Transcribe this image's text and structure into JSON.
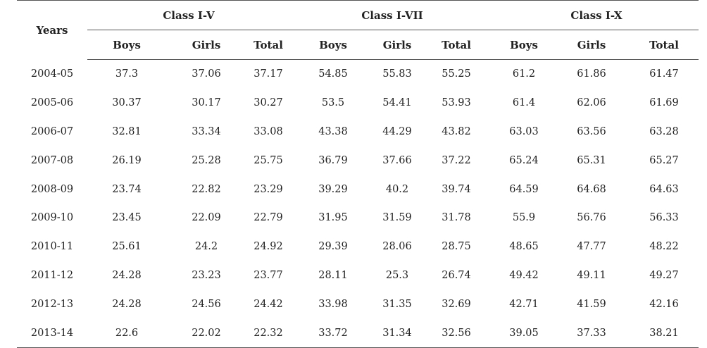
{
  "header": {
    "years_label": "Years",
    "groups": [
      "Class I-V",
      "Class I-VII",
      "Class I-X"
    ],
    "subcolumns": [
      "Boys",
      "Girls",
      "Total",
      "Boys",
      "Girls",
      "Total",
      "Boys",
      "Girls",
      "Total"
    ]
  },
  "rows": [
    {
      "year": "2004-05",
      "values": [
        "37.3",
        "37.06",
        "37.17",
        "54.85",
        "55.83",
        "55.25",
        "61.2",
        "61.86",
        "61.47"
      ]
    },
    {
      "year": "2005-06",
      "values": [
        "30.37",
        "30.17",
        "30.27",
        "53.5",
        "54.41",
        "53.93",
        "61.4",
        "62.06",
        "61.69"
      ]
    },
    {
      "year": "2006-07",
      "values": [
        "32.81",
        "33.34",
        "33.08",
        "43.38",
        "44.29",
        "43.82",
        "63.03",
        "63.56",
        "63.28"
      ]
    },
    {
      "year": "2007-08",
      "values": [
        "26.19",
        "25.28",
        "25.75",
        "36.79",
        "37.66",
        "37.22",
        "65.24",
        "65.31",
        "65.27"
      ]
    },
    {
      "year": "2008-09",
      "values": [
        "23.74",
        "22.82",
        "23.29",
        "39.29",
        "40.2",
        "39.74",
        "64.59",
        "64.68",
        "64.63"
      ]
    },
    {
      "year": "2009-10",
      "values": [
        "23.45",
        "22.09",
        "22.79",
        "31.95",
        "31.59",
        "31.78",
        "55.9",
        "56.76",
        "56.33"
      ]
    },
    {
      "year": "2010-11",
      "values": [
        "25.61",
        "24.2",
        "24.92",
        "29.39",
        "28.06",
        "28.75",
        "48.65",
        "47.77",
        "48.22"
      ]
    },
    {
      "year": "2011-12",
      "values": [
        "24.28",
        "23.23",
        "23.77",
        "28.11",
        "25.3",
        "26.74",
        "49.42",
        "49.11",
        "49.27"
      ]
    },
    {
      "year": "2012-13",
      "values": [
        "24.28",
        "24.56",
        "24.42",
        "33.98",
        "31.35",
        "32.69",
        "42.71",
        "41.59",
        "42.16"
      ]
    },
    {
      "year": "2013-14",
      "values": [
        "22.6",
        "22.02",
        "22.32",
        "33.72",
        "31.34",
        "32.56",
        "39.05",
        "37.33",
        "38.21"
      ]
    }
  ]
}
